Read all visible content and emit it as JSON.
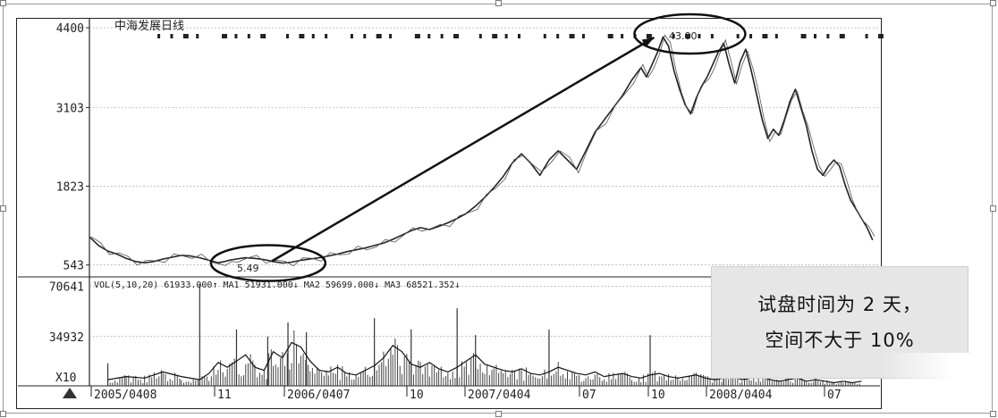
{
  "chart_data": {
    "type": "line",
    "title": "中海发展日线",
    "price_axis": {
      "ticks": [
        543,
        1823,
        3103,
        4400
      ],
      "ylim": [
        350,
        4560
      ],
      "grid": true
    },
    "volume_axis": {
      "ticks": [
        34932,
        70641
      ],
      "ylim": [
        0,
        76000
      ],
      "unit_label": "X10"
    },
    "x_ticks": [
      "2005/0408",
      "11",
      "2006/0407",
      "10",
      "2007/0404",
      "07",
      "10",
      "2008/0404",
      "07"
    ],
    "volume_legend": "VOL(5,10,20) 61933.000↑  MA1 51931.000↓  MA2 59699.000↓  MA3 68521.352↓",
    "annotations": {
      "low_label": "5.49",
      "high_label": "43.00"
    },
    "price_series": [
      {
        "t": 0,
        "v": 1000
      },
      {
        "t": 5,
        "v": 860
      },
      {
        "t": 10,
        "v": 770
      },
      {
        "t": 15,
        "v": 720
      },
      {
        "t": 20,
        "v": 650
      },
      {
        "t": 25,
        "v": 600
      },
      {
        "t": 30,
        "v": 580
      },
      {
        "t": 35,
        "v": 600
      },
      {
        "t": 40,
        "v": 640
      },
      {
        "t": 45,
        "v": 670
      },
      {
        "t": 50,
        "v": 700
      },
      {
        "t": 55,
        "v": 690
      },
      {
        "t": 60,
        "v": 660
      },
      {
        "t": 65,
        "v": 620
      },
      {
        "t": 70,
        "v": 580
      },
      {
        "t": 73,
        "v": 595
      },
      {
        "t": 76,
        "v": 620
      },
      {
        "t": 80,
        "v": 640
      },
      {
        "t": 85,
        "v": 660
      },
      {
        "t": 90,
        "v": 650
      },
      {
        "t": 95,
        "v": 630
      },
      {
        "t": 100,
        "v": 600
      },
      {
        "t": 105,
        "v": 575
      },
      {
        "t": 110,
        "v": 590
      },
      {
        "t": 115,
        "v": 620
      },
      {
        "t": 120,
        "v": 640
      },
      {
        "t": 125,
        "v": 660
      },
      {
        "t": 130,
        "v": 690
      },
      {
        "t": 135,
        "v": 720
      },
      {
        "t": 140,
        "v": 760
      },
      {
        "t": 145,
        "v": 790
      },
      {
        "t": 150,
        "v": 820
      },
      {
        "t": 155,
        "v": 860
      },
      {
        "t": 160,
        "v": 900
      },
      {
        "t": 165,
        "v": 960
      },
      {
        "t": 170,
        "v": 1030
      },
      {
        "t": 175,
        "v": 1100
      },
      {
        "t": 180,
        "v": 1150
      },
      {
        "t": 185,
        "v": 1120
      },
      {
        "t": 190,
        "v": 1170
      },
      {
        "t": 195,
        "v": 1230
      },
      {
        "t": 200,
        "v": 1300
      },
      {
        "t": 205,
        "v": 1380
      },
      {
        "t": 210,
        "v": 1500
      },
      {
        "t": 215,
        "v": 1640
      },
      {
        "t": 220,
        "v": 1800
      },
      {
        "t": 225,
        "v": 1980
      },
      {
        "t": 230,
        "v": 2200
      },
      {
        "t": 235,
        "v": 2350
      },
      {
        "t": 240,
        "v": 2200
      },
      {
        "t": 245,
        "v": 2000
      },
      {
        "t": 250,
        "v": 2250
      },
      {
        "t": 255,
        "v": 2400
      },
      {
        "t": 260,
        "v": 2250
      },
      {
        "t": 265,
        "v": 2100
      },
      {
        "t": 270,
        "v": 2400
      },
      {
        "t": 275,
        "v": 2700
      },
      {
        "t": 280,
        "v": 2900
      },
      {
        "t": 285,
        "v": 3100
      },
      {
        "t": 290,
        "v": 3300
      },
      {
        "t": 295,
        "v": 3550
      },
      {
        "t": 300,
        "v": 3750
      },
      {
        "t": 303,
        "v": 3600
      },
      {
        "t": 306,
        "v": 3800
      },
      {
        "t": 309,
        "v": 4000
      },
      {
        "t": 312,
        "v": 4250
      },
      {
        "t": 315,
        "v": 4100
      },
      {
        "t": 318,
        "v": 3700
      },
      {
        "t": 321,
        "v": 3400
      },
      {
        "t": 324,
        "v": 3150
      },
      {
        "t": 327,
        "v": 3000
      },
      {
        "t": 330,
        "v": 3250
      },
      {
        "t": 333,
        "v": 3450
      },
      {
        "t": 336,
        "v": 3600
      },
      {
        "t": 339,
        "v": 3800
      },
      {
        "t": 342,
        "v": 4000
      },
      {
        "t": 345,
        "v": 4150
      },
      {
        "t": 348,
        "v": 3800
      },
      {
        "t": 351,
        "v": 3500
      },
      {
        "t": 354,
        "v": 3850
      },
      {
        "t": 357,
        "v": 4050
      },
      {
        "t": 360,
        "v": 3700
      },
      {
        "t": 363,
        "v": 3300
      },
      {
        "t": 366,
        "v": 2900
      },
      {
        "t": 369,
        "v": 2600
      },
      {
        "t": 372,
        "v": 2750
      },
      {
        "t": 375,
        "v": 2650
      },
      {
        "t": 378,
        "v": 2900
      },
      {
        "t": 381,
        "v": 3200
      },
      {
        "t": 384,
        "v": 3400
      },
      {
        "t": 387,
        "v": 3100
      },
      {
        "t": 390,
        "v": 2800
      },
      {
        "t": 393,
        "v": 2400
      },
      {
        "t": 396,
        "v": 2100
      },
      {
        "t": 399,
        "v": 2000
      },
      {
        "t": 402,
        "v": 2150
      },
      {
        "t": 405,
        "v": 2250
      },
      {
        "t": 408,
        "v": 2150
      },
      {
        "t": 411,
        "v": 1850
      },
      {
        "t": 414,
        "v": 1600
      },
      {
        "t": 417,
        "v": 1450
      },
      {
        "t": 420,
        "v": 1300
      },
      {
        "t": 423,
        "v": 1150
      },
      {
        "t": 426,
        "v": 950
      }
    ],
    "volume_series": [
      {
        "t": 10,
        "v": 4000
      },
      {
        "t": 20,
        "v": 6000
      },
      {
        "t": 30,
        "v": 5000
      },
      {
        "t": 40,
        "v": 9000
      },
      {
        "t": 50,
        "v": 6000
      },
      {
        "t": 60,
        "v": 4000
      },
      {
        "t": 65,
        "v": 8000
      },
      {
        "t": 70,
        "v": 15000
      },
      {
        "t": 75,
        "v": 12000
      },
      {
        "t": 80,
        "v": 16000
      },
      {
        "t": 85,
        "v": 20000
      },
      {
        "t": 90,
        "v": 12000
      },
      {
        "t": 95,
        "v": 10000
      },
      {
        "t": 100,
        "v": 22000
      },
      {
        "t": 105,
        "v": 18000
      },
      {
        "t": 110,
        "v": 28000
      },
      {
        "t": 115,
        "v": 25000
      },
      {
        "t": 120,
        "v": 16000
      },
      {
        "t": 125,
        "v": 10000
      },
      {
        "t": 130,
        "v": 9000
      },
      {
        "t": 135,
        "v": 12000
      },
      {
        "t": 140,
        "v": 8000
      },
      {
        "t": 145,
        "v": 7000
      },
      {
        "t": 150,
        "v": 10000
      },
      {
        "t": 155,
        "v": 13000
      },
      {
        "t": 160,
        "v": 18000
      },
      {
        "t": 165,
        "v": 26000
      },
      {
        "t": 170,
        "v": 22000
      },
      {
        "t": 175,
        "v": 14000
      },
      {
        "t": 180,
        "v": 12000
      },
      {
        "t": 185,
        "v": 15000
      },
      {
        "t": 190,
        "v": 11000
      },
      {
        "t": 195,
        "v": 9000
      },
      {
        "t": 200,
        "v": 12000
      },
      {
        "t": 205,
        "v": 16000
      },
      {
        "t": 210,
        "v": 20000
      },
      {
        "t": 215,
        "v": 14000
      },
      {
        "t": 220,
        "v": 12000
      },
      {
        "t": 225,
        "v": 10000
      },
      {
        "t": 230,
        "v": 9000
      },
      {
        "t": 235,
        "v": 11000
      },
      {
        "t": 240,
        "v": 8000
      },
      {
        "t": 245,
        "v": 7000
      },
      {
        "t": 250,
        "v": 9000
      },
      {
        "t": 255,
        "v": 12000
      },
      {
        "t": 260,
        "v": 10000
      },
      {
        "t": 265,
        "v": 8000
      },
      {
        "t": 270,
        "v": 7000
      },
      {
        "t": 275,
        "v": 9000
      },
      {
        "t": 280,
        "v": 6000
      },
      {
        "t": 285,
        "v": 7000
      },
      {
        "t": 290,
        "v": 8000
      },
      {
        "t": 295,
        "v": 6000
      },
      {
        "t": 300,
        "v": 5000
      },
      {
        "t": 305,
        "v": 7000
      },
      {
        "t": 310,
        "v": 8000
      },
      {
        "t": 315,
        "v": 6000
      },
      {
        "t": 320,
        "v": 5000
      },
      {
        "t": 325,
        "v": 6000
      },
      {
        "t": 330,
        "v": 7000
      },
      {
        "t": 335,
        "v": 5000
      },
      {
        "t": 340,
        "v": 4000
      },
      {
        "t": 345,
        "v": 5000
      },
      {
        "t": 350,
        "v": 6000
      },
      {
        "t": 355,
        "v": 4000
      },
      {
        "t": 360,
        "v": 5000
      },
      {
        "t": 365,
        "v": 6000
      },
      {
        "t": 370,
        "v": 4000
      },
      {
        "t": 375,
        "v": 3000
      },
      {
        "t": 380,
        "v": 4000
      },
      {
        "t": 385,
        "v": 5000
      },
      {
        "t": 390,
        "v": 3000
      },
      {
        "t": 395,
        "v": 4000
      },
      {
        "t": 400,
        "v": 3000
      },
      {
        "t": 405,
        "v": 2000
      },
      {
        "t": 410,
        "v": 3000
      },
      {
        "t": 415,
        "v": 2000
      },
      {
        "t": 420,
        "v": 3000
      }
    ],
    "volume_spikes": [
      {
        "t": 10,
        "v": 16000
      },
      {
        "t": 60,
        "v": 72000
      },
      {
        "t": 80,
        "v": 40000
      },
      {
        "t": 97,
        "v": 35000
      },
      {
        "t": 108,
        "v": 45000
      },
      {
        "t": 118,
        "v": 38000
      },
      {
        "t": 155,
        "v": 48000
      },
      {
        "t": 175,
        "v": 40000
      },
      {
        "t": 200,
        "v": 55000
      },
      {
        "t": 210,
        "v": 36000
      },
      {
        "t": 250,
        "v": 40000
      },
      {
        "t": 305,
        "v": 36000
      },
      {
        "t": 345,
        "v": 15000
      },
      {
        "t": 395,
        "v": 20000
      }
    ],
    "callout": {
      "line1": "试盘时间为 2 天，",
      "line2": "空间不大于 10%"
    },
    "colors": {
      "line": "#222222",
      "grid": "#9a9a9a",
      "callout_bg": "#e6e6e6"
    }
  }
}
